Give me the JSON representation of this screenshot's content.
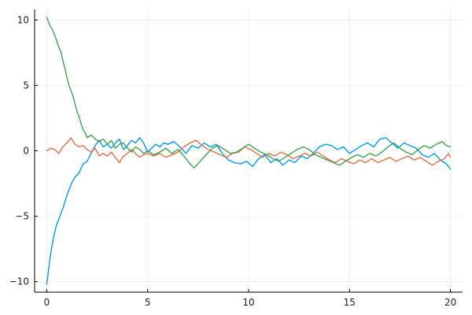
{
  "chart_data": {
    "type": "line",
    "title": "",
    "xlabel": "",
    "ylabel": "",
    "xlim": [
      -0.6,
      20.6
    ],
    "ylim": [
      -10.8,
      10.8
    ],
    "x_ticks": [
      0,
      5,
      10,
      15,
      20
    ],
    "x_tick_labels": [
      "0",
      "5",
      "10",
      "15",
      "20"
    ],
    "y_ticks": [
      -10,
      -5,
      0,
      5,
      10
    ],
    "y_tick_labels": [
      "−10",
      "−5",
      "0",
      "5",
      "10"
    ],
    "grid": true,
    "legend": "none",
    "series": [
      {
        "color": "#009AFA",
        "points": [
          [
            0,
            -10.2
          ],
          [
            0.1,
            -9.0
          ],
          [
            0.2,
            -7.8
          ],
          [
            0.35,
            -6.5
          ],
          [
            0.5,
            -5.6
          ],
          [
            0.65,
            -5.0
          ],
          [
            0.8,
            -4.4
          ],
          [
            1.0,
            -3.4
          ],
          [
            1.2,
            -2.6
          ],
          [
            1.4,
            -2.0
          ],
          [
            1.6,
            -1.7
          ],
          [
            1.8,
            -1.0
          ],
          [
            2.0,
            -0.8
          ],
          [
            2.2,
            -0.2
          ],
          [
            2.4,
            0.4
          ],
          [
            2.6,
            0.8
          ],
          [
            2.8,
            0.3
          ],
          [
            3.0,
            0.5
          ],
          [
            3.2,
            0.2
          ],
          [
            3.4,
            0.6
          ],
          [
            3.6,
            0.9
          ],
          [
            3.8,
            0.1
          ],
          [
            4.0,
            0.4
          ],
          [
            4.2,
            0.8
          ],
          [
            4.4,
            0.6
          ],
          [
            4.6,
            1.0
          ],
          [
            4.8,
            0.6
          ],
          [
            5.0,
            -0.1
          ],
          [
            5.2,
            0.2
          ],
          [
            5.4,
            0.5
          ],
          [
            5.6,
            0.3
          ],
          [
            5.8,
            0.6
          ],
          [
            6.0,
            0.5
          ],
          [
            6.3,
            0.7
          ],
          [
            6.6,
            0.3
          ],
          [
            6.9,
            -0.2
          ],
          [
            7.2,
            0.4
          ],
          [
            7.5,
            0.2
          ],
          [
            7.8,
            0.6
          ],
          [
            8.1,
            0.3
          ],
          [
            8.4,
            0.5
          ],
          [
            8.7,
            -0.2
          ],
          [
            9.0,
            -0.7
          ],
          [
            9.3,
            -0.9
          ],
          [
            9.6,
            -1.0
          ],
          [
            9.9,
            -0.8
          ],
          [
            10.2,
            -1.2
          ],
          [
            10.5,
            -0.6
          ],
          [
            10.8,
            -0.3
          ],
          [
            11.1,
            -0.9
          ],
          [
            11.4,
            -0.6
          ],
          [
            11.7,
            -1.1
          ],
          [
            12.0,
            -0.7
          ],
          [
            12.3,
            -0.9
          ],
          [
            12.6,
            -0.4
          ],
          [
            12.9,
            -0.6
          ],
          [
            13.2,
            -0.2
          ],
          [
            13.5,
            0.3
          ],
          [
            13.8,
            0.5
          ],
          [
            14.1,
            0.4
          ],
          [
            14.4,
            0.1
          ],
          [
            14.7,
            0.3
          ],
          [
            15.0,
            -0.2
          ],
          [
            15.3,
            0.1
          ],
          [
            15.6,
            0.4
          ],
          [
            15.9,
            0.6
          ],
          [
            16.2,
            0.3
          ],
          [
            16.5,
            0.9
          ],
          [
            16.8,
            1.0
          ],
          [
            17.1,
            0.6
          ],
          [
            17.4,
            0.2
          ],
          [
            17.7,
            0.6
          ],
          [
            18.0,
            0.4
          ],
          [
            18.3,
            0.2
          ],
          [
            18.6,
            -0.3
          ],
          [
            18.9,
            -0.5
          ],
          [
            19.2,
            -0.2
          ],
          [
            19.5,
            -0.7
          ],
          [
            19.8,
            -1.0
          ],
          [
            20.0,
            -1.4
          ]
        ]
      },
      {
        "color": "#E26F46",
        "points": [
          [
            0,
            0.0
          ],
          [
            0.2,
            0.2
          ],
          [
            0.4,
            0.1
          ],
          [
            0.6,
            -0.2
          ],
          [
            0.8,
            0.3
          ],
          [
            1.0,
            0.6
          ],
          [
            1.2,
            1.0
          ],
          [
            1.4,
            0.5
          ],
          [
            1.6,
            0.3
          ],
          [
            1.8,
            0.4
          ],
          [
            2.0,
            0.1
          ],
          [
            2.2,
            -0.1
          ],
          [
            2.4,
            0.2
          ],
          [
            2.6,
            -0.4
          ],
          [
            2.8,
            -0.2
          ],
          [
            3.0,
            -0.4
          ],
          [
            3.2,
            -0.1
          ],
          [
            3.4,
            -0.5
          ],
          [
            3.6,
            -0.9
          ],
          [
            3.8,
            -0.4
          ],
          [
            4.0,
            -0.2
          ],
          [
            4.2,
            0.1
          ],
          [
            4.4,
            -0.2
          ],
          [
            4.6,
            -0.5
          ],
          [
            4.8,
            -0.3
          ],
          [
            5.0,
            -0.2
          ],
          [
            5.3,
            -0.4
          ],
          [
            5.6,
            -0.2
          ],
          [
            5.9,
            -0.5
          ],
          [
            6.2,
            -0.3
          ],
          [
            6.5,
            -0.1
          ],
          [
            6.8,
            0.3
          ],
          [
            7.1,
            0.6
          ],
          [
            7.4,
            0.8
          ],
          [
            7.7,
            0.4
          ],
          [
            8.0,
            0.1
          ],
          [
            8.3,
            -0.1
          ],
          [
            8.6,
            -0.3
          ],
          [
            8.9,
            -0.5
          ],
          [
            9.2,
            -0.2
          ],
          [
            9.5,
            -0.1
          ],
          [
            9.8,
            0.3
          ],
          [
            10.1,
            0.1
          ],
          [
            10.4,
            -0.2
          ],
          [
            10.7,
            -0.5
          ],
          [
            11.0,
            -0.2
          ],
          [
            11.3,
            -0.4
          ],
          [
            11.6,
            -0.1
          ],
          [
            11.9,
            -0.3
          ],
          [
            12.2,
            -0.6
          ],
          [
            12.5,
            -0.4
          ],
          [
            12.8,
            -0.2
          ],
          [
            13.1,
            -0.4
          ],
          [
            13.4,
            -0.1
          ],
          [
            13.7,
            -0.4
          ],
          [
            14.0,
            -0.7
          ],
          [
            14.3,
            -0.9
          ],
          [
            14.6,
            -0.6
          ],
          [
            14.9,
            -0.8
          ],
          [
            15.2,
            -1.0
          ],
          [
            15.5,
            -0.7
          ],
          [
            15.8,
            -0.9
          ],
          [
            16.1,
            -0.6
          ],
          [
            16.4,
            -0.9
          ],
          [
            16.7,
            -0.7
          ],
          [
            17.0,
            -0.5
          ],
          [
            17.3,
            -0.8
          ],
          [
            17.6,
            -0.6
          ],
          [
            17.9,
            -0.4
          ],
          [
            18.2,
            -0.7
          ],
          [
            18.5,
            -0.5
          ],
          [
            18.8,
            -0.8
          ],
          [
            19.1,
            -1.1
          ],
          [
            19.4,
            -0.8
          ],
          [
            19.7,
            -0.6
          ],
          [
            19.9,
            -0.2
          ],
          [
            20.0,
            -0.5
          ]
        ]
      },
      {
        "color": "#3EA44E",
        "points": [
          [
            0,
            10.2
          ],
          [
            0.15,
            9.6
          ],
          [
            0.3,
            9.2
          ],
          [
            0.45,
            8.6
          ],
          [
            0.6,
            7.9
          ],
          [
            0.7,
            7.6
          ],
          [
            0.8,
            6.9
          ],
          [
            0.9,
            6.3
          ],
          [
            1.0,
            5.6
          ],
          [
            1.1,
            5.0
          ],
          [
            1.2,
            4.6
          ],
          [
            1.3,
            4.2
          ],
          [
            1.4,
            3.6
          ],
          [
            1.5,
            3.0
          ],
          [
            1.6,
            2.6
          ],
          [
            1.7,
            2.1
          ],
          [
            1.8,
            1.6
          ],
          [
            1.9,
            1.4
          ],
          [
            2.0,
            1.0
          ],
          [
            2.2,
            1.2
          ],
          [
            2.4,
            0.9
          ],
          [
            2.6,
            0.7
          ],
          [
            2.8,
            0.9
          ],
          [
            3.0,
            0.5
          ],
          [
            3.2,
            0.8
          ],
          [
            3.4,
            0.2
          ],
          [
            3.6,
            0.5
          ],
          [
            3.8,
            0.6
          ],
          [
            4.0,
            0.2
          ],
          [
            4.2,
            -0.1
          ],
          [
            4.4,
            0.3
          ],
          [
            4.6,
            0.1
          ],
          [
            4.8,
            -0.2
          ],
          [
            5.0,
            0.0
          ],
          [
            5.3,
            -0.3
          ],
          [
            5.6,
            -0.1
          ],
          [
            5.9,
            0.2
          ],
          [
            6.2,
            -0.2
          ],
          [
            6.5,
            0.1
          ],
          [
            6.8,
            -0.4
          ],
          [
            7.1,
            -1.0
          ],
          [
            7.3,
            -1.3
          ],
          [
            7.6,
            -0.8
          ],
          [
            7.9,
            -0.3
          ],
          [
            8.2,
            0.2
          ],
          [
            8.5,
            0.4
          ],
          [
            8.8,
            0.1
          ],
          [
            9.1,
            -0.2
          ],
          [
            9.4,
            -0.1
          ],
          [
            9.7,
            0.2
          ],
          [
            10.0,
            0.5
          ],
          [
            10.3,
            0.2
          ],
          [
            10.6,
            -0.1
          ],
          [
            10.9,
            -0.3
          ],
          [
            11.2,
            -0.6
          ],
          [
            11.5,
            -0.8
          ],
          [
            11.8,
            -0.5
          ],
          [
            12.1,
            -0.2
          ],
          [
            12.4,
            0.1
          ],
          [
            12.7,
            0.3
          ],
          [
            13.0,
            0.1
          ],
          [
            13.3,
            -0.3
          ],
          [
            13.6,
            -0.5
          ],
          [
            13.9,
            -0.7
          ],
          [
            14.2,
            -0.9
          ],
          [
            14.5,
            -1.1
          ],
          [
            14.8,
            -0.8
          ],
          [
            15.1,
            -0.5
          ],
          [
            15.4,
            -0.3
          ],
          [
            15.7,
            -0.5
          ],
          [
            16.0,
            -0.2
          ],
          [
            16.3,
            -0.4
          ],
          [
            16.6,
            -0.1
          ],
          [
            16.9,
            0.3
          ],
          [
            17.2,
            0.6
          ],
          [
            17.5,
            0.2
          ],
          [
            17.8,
            -0.1
          ],
          [
            18.1,
            -0.3
          ],
          [
            18.4,
            0.1
          ],
          [
            18.7,
            0.4
          ],
          [
            19.0,
            0.2
          ],
          [
            19.3,
            0.5
          ],
          [
            19.6,
            0.7
          ],
          [
            19.8,
            0.4
          ],
          [
            20.0,
            0.3
          ]
        ]
      }
    ]
  }
}
